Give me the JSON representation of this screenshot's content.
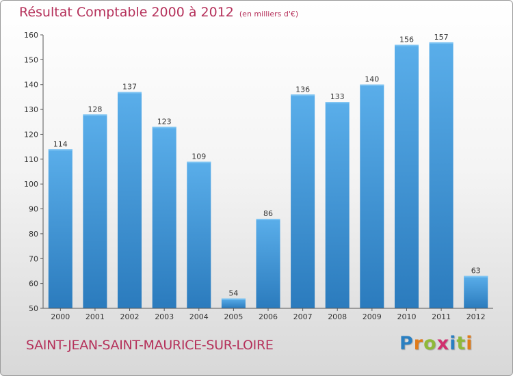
{
  "title": "Résultat Comptable 2000 à 2012",
  "subtitle": "(en milliers d'€)",
  "commune": "SAINT-JEAN-SAINT-MAURICE-SUR-LOIRE",
  "logo": {
    "text": "Proxiti",
    "letters": [
      {
        "ch": "P",
        "color": "#2a7fc1"
      },
      {
        "ch": "r",
        "color": "#e07b1a"
      },
      {
        "ch": "o",
        "color": "#8fb93a"
      },
      {
        "ch": "x",
        "color": "#d12f6e"
      },
      {
        "ch": "i",
        "color": "#2a7fc1"
      },
      {
        "ch": "t",
        "color": "#8fb93a"
      },
      {
        "ch": "i",
        "color": "#e07b1a"
      }
    ]
  },
  "colors": {
    "accent": "#b5305a",
    "bar_top": "#5aaeea",
    "bar_bottom": "#2b7bbd"
  },
  "chart_data": {
    "type": "bar",
    "title": "Résultat Comptable 2000 à 2012",
    "xlabel": "",
    "ylabel": "",
    "categories": [
      "2000",
      "2001",
      "2002",
      "2003",
      "2004",
      "2005",
      "2006",
      "2007",
      "2008",
      "2009",
      "2010",
      "2011",
      "2012"
    ],
    "values": [
      114,
      128,
      137,
      123,
      109,
      54,
      86,
      136,
      133,
      140,
      156,
      157,
      63
    ],
    "ylim": [
      50,
      160
    ],
    "yticks": [
      50,
      60,
      70,
      80,
      90,
      100,
      110,
      120,
      130,
      140,
      150,
      160
    ],
    "grid": false,
    "data_labels": true
  }
}
